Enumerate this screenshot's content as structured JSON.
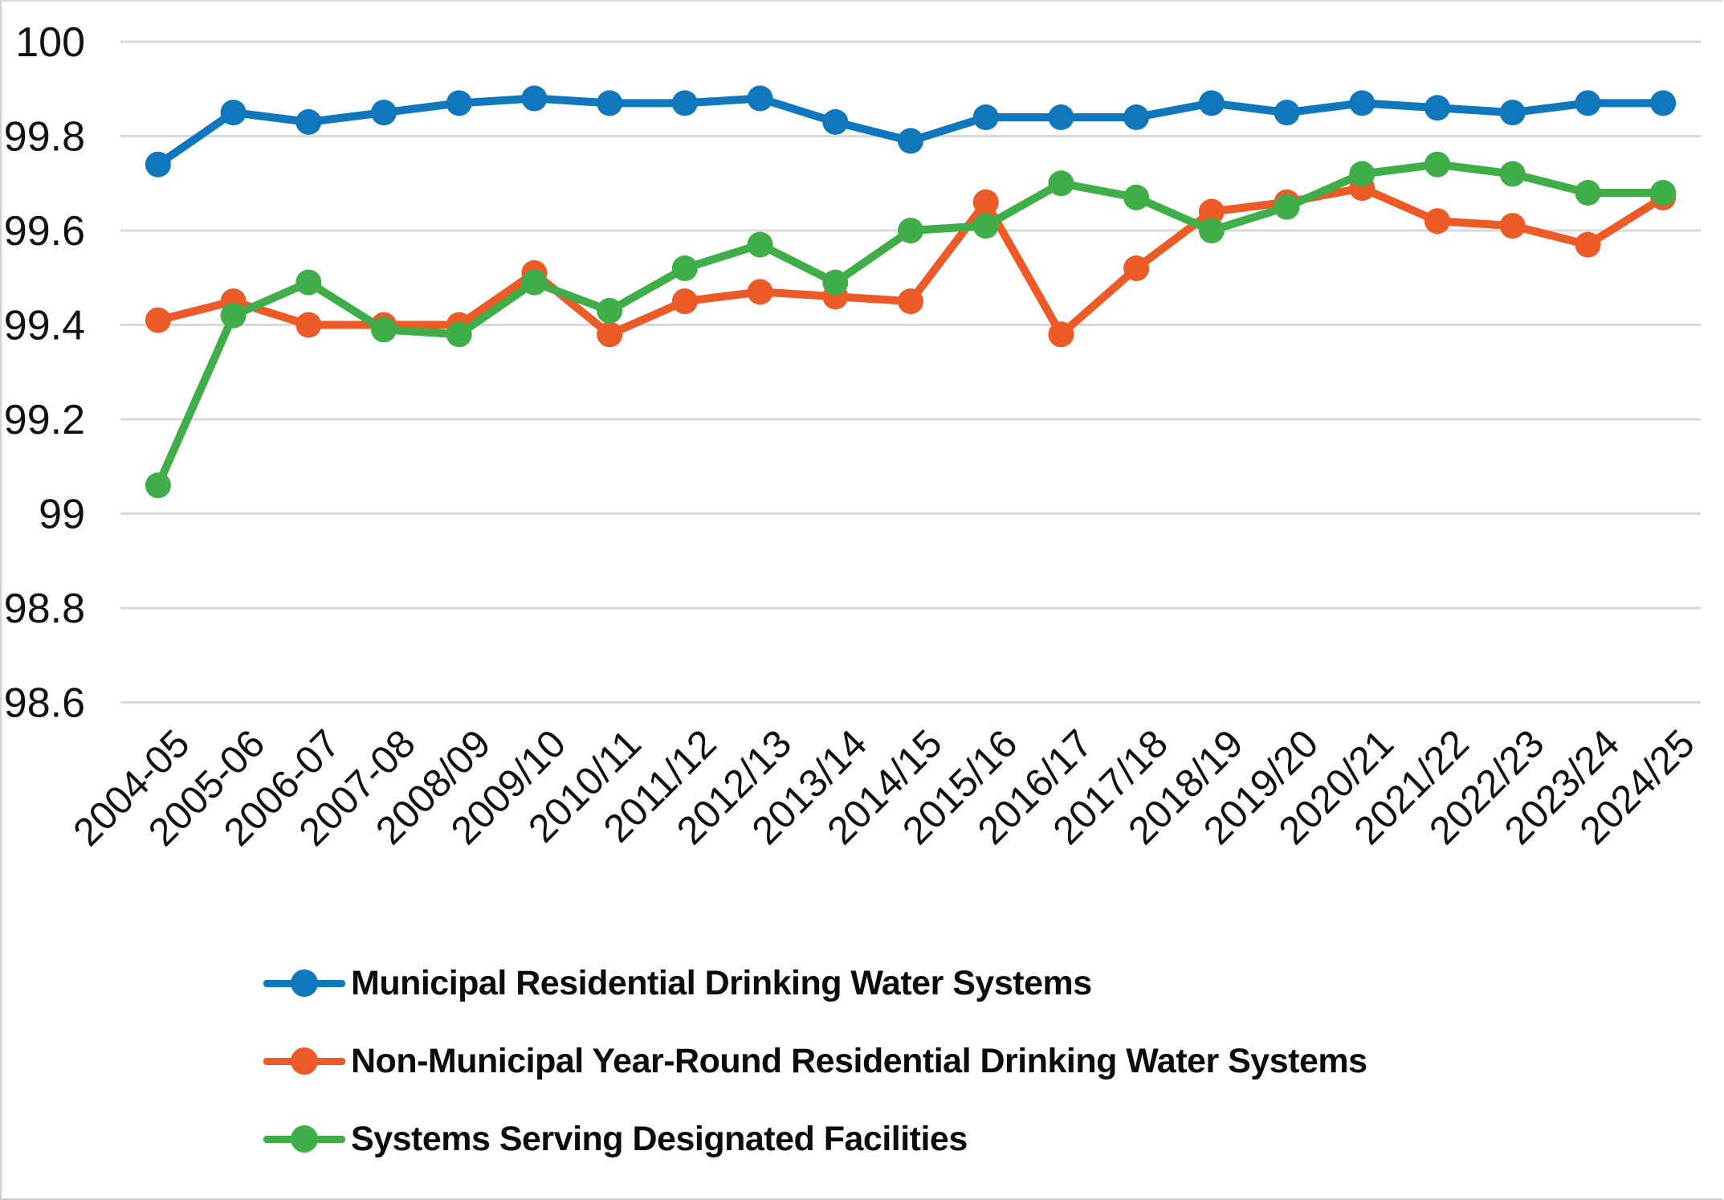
{
  "chart_data": {
    "type": "line",
    "title": "",
    "xlabel": "",
    "ylabel": "",
    "grid": true,
    "legend_position": "bottom-left",
    "y_axis": {
      "min": 98.6,
      "max": 100,
      "tick_step": 0.2,
      "tick_values": [
        100,
        99.8,
        99.6,
        99.4,
        99.2,
        99,
        98.8,
        98.6
      ],
      "tick_labels": [
        "100",
        "99.8",
        "99.6",
        "99.4",
        "99.2",
        "99",
        "98.8",
        "98.6"
      ]
    },
    "categories": [
      "2004-05",
      "2005-06",
      "2006-07",
      "2007-08",
      "2008/09",
      "2009/10",
      "2010/11",
      "2011/12",
      "2012/13",
      "2013/14",
      "2014/15",
      "2015/16",
      "2016/17",
      "2017/18",
      "2018/19",
      "2019/20",
      "2020/21",
      "2021/22",
      "2022/23",
      "2023/24",
      "2024/25"
    ],
    "series": [
      {
        "name": "Municipal Residential Drinking Water Systems",
        "color": "#1177BD",
        "values": [
          99.74,
          99.85,
          99.83,
          99.85,
          99.87,
          99.88,
          99.87,
          99.87,
          99.88,
          99.83,
          99.79,
          99.84,
          99.84,
          99.84,
          99.87,
          99.85,
          99.87,
          99.86,
          99.85,
          99.87,
          99.87
        ]
      },
      {
        "name": "Non-Municipal Year-Round Residential Drinking Water Systems",
        "color": "#EC5A28",
        "values": [
          99.41,
          99.45,
          99.4,
          99.4,
          99.4,
          99.51,
          99.38,
          99.45,
          99.47,
          99.46,
          99.45,
          99.66,
          99.38,
          99.52,
          99.64,
          99.66,
          99.69,
          99.62,
          99.61,
          99.57,
          99.67
        ]
      },
      {
        "name": "Systems Serving Designated Facilities",
        "color": "#3FAE49",
        "values": [
          99.06,
          99.42,
          99.49,
          99.39,
          99.38,
          99.49,
          99.43,
          99.52,
          99.57,
          99.49,
          99.6,
          99.61,
          99.7,
          99.67,
          99.6,
          99.65,
          99.72,
          99.74,
          99.72,
          99.68,
          99.68
        ]
      }
    ]
  },
  "style": {
    "gridline_color": "#D9D9D9",
    "background_color": "#FFFFFF",
    "tick_text_color": "#111111",
    "legend_text_color": "#0C0C0C"
  }
}
